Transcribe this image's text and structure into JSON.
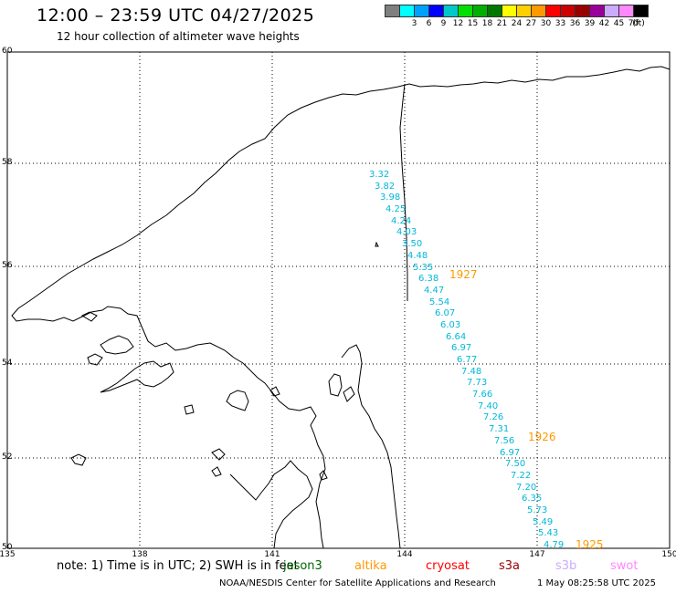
{
  "header": {
    "title": "12:00 – 23:59 UTC 04/27/2025",
    "subtitle": "12 hour collection of altimeter wave heights"
  },
  "legend": {
    "unit_label": "(ft)",
    "items": [
      {
        "label": "",
        "color": "#7f7f7f"
      },
      {
        "label": "3",
        "color": "#00ffff"
      },
      {
        "label": "6",
        "color": "#00a0ff"
      },
      {
        "label": "9",
        "color": "#0000ff"
      },
      {
        "label": "12",
        "color": "#00c8c8"
      },
      {
        "label": "15",
        "color": "#00e000"
      },
      {
        "label": "18",
        "color": "#00b000"
      },
      {
        "label": "21",
        "color": "#007800"
      },
      {
        "label": "24",
        "color": "#ffff00"
      },
      {
        "label": "27",
        "color": "#ffd000"
      },
      {
        "label": "30",
        "color": "#ff9900"
      },
      {
        "label": "33",
        "color": "#ff0000"
      },
      {
        "label": "36",
        "color": "#cc0000"
      },
      {
        "label": "39",
        "color": "#990000"
      },
      {
        "label": "42",
        "color": "#990099"
      },
      {
        "label": "45",
        "color": "#ccaaff"
      },
      {
        "label": "70",
        "color": "#ff88ff"
      },
      {
        "label": "",
        "color": "#000000"
      }
    ]
  },
  "map": {
    "lat_labels": [
      "60",
      "58",
      "56",
      "54",
      "52",
      "50"
    ],
    "lon_labels": [
      "135",
      "138",
      "141",
      "144",
      "147",
      "150"
    ],
    "wave_color": "#00b8d8",
    "time_color": "#ff9900",
    "wave_heights": [
      "3.32",
      "3.82",
      "3.98",
      "4.25",
      "4.24",
      "4.03",
      "3.50",
      "4.48",
      "5.35",
      "6.38",
      "4.47",
      "5.54",
      "6.07",
      "6.03",
      "6.64",
      "6.97",
      "6.77",
      "7.48",
      "7.73",
      "7.66",
      "7.40",
      "7.26",
      "7.31",
      "7.56",
      "6.97",
      "7.50",
      "7.22",
      "7.20",
      "6.35",
      "5.73",
      "5.49",
      "5.43",
      "4.79"
    ],
    "time_labels": [
      "1927",
      "1926",
      "1925"
    ]
  },
  "footer": {
    "note": "note: 1) Time is in UTC; 2) SWH is in feet",
    "missions": [
      {
        "label": "jason3",
        "color": "#006600"
      },
      {
        "label": "altika",
        "color": "#ff9900"
      },
      {
        "label": "cryosat",
        "color": "#ff0000"
      },
      {
        "label": "s3a",
        "color": "#990000"
      },
      {
        "label": "s3b",
        "color": "#ccaaff"
      },
      {
        "label": "swot",
        "color": "#ff88ff"
      }
    ],
    "credit": "NOAA/NESDIS Center for Satellite Applications and Research",
    "timestamp": "1 May 08:25:58 UTC 2025"
  }
}
